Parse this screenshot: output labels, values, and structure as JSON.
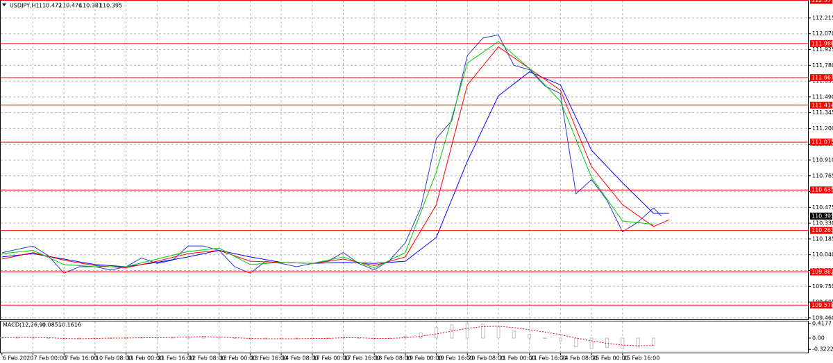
{
  "chart_data": [
    {
      "type": "line",
      "title": "USDJPY,H1",
      "ohlc": [
        110.472,
        110.476,
        110.381,
        110.395
      ],
      "xlim": [
        -1,
        416
      ],
      "xticks": [
        {
          "value": 0,
          "label": "6 Feb 2020"
        },
        {
          "value": 16,
          "label": "7 Feb 00:00"
        },
        {
          "value": 32,
          "label": "7 Feb 16:00"
        },
        {
          "value": 48,
          "label": "10 Feb 08:00"
        },
        {
          "value": 64,
          "label": "11 Feb 00:00"
        },
        {
          "value": 80,
          "label": "11 Feb 16:00"
        },
        {
          "value": 96,
          "label": "12 Feb 08:00"
        },
        {
          "value": 112,
          "label": "13 Feb 00:00"
        },
        {
          "value": 128,
          "label": "13 Feb 16:00"
        },
        {
          "value": 144,
          "label": "14 Feb 08:00"
        },
        {
          "value": 160,
          "label": "17 Feb 00:00"
        },
        {
          "value": 176,
          "label": "17 Feb 16:00"
        },
        {
          "value": 192,
          "label": "18 Feb 08:00"
        },
        {
          "value": 208,
          "label": "19 Feb 00:00"
        },
        {
          "value": 224,
          "label": "19 Feb 16:00"
        },
        {
          "value": 240,
          "label": "20 Feb 08:00"
        },
        {
          "value": 256,
          "label": "21 Feb 00:00"
        },
        {
          "value": 272,
          "label": "21 Feb 16:00"
        },
        {
          "value": 288,
          "label": "24 Feb 08:00"
        },
        {
          "value": 304,
          "label": "25 Feb 00:00"
        },
        {
          "value": 320,
          "label": "25 Feb 16:00"
        }
      ],
      "ylim": [
        109.44,
        112.38
      ],
      "yticks": [
        112.215,
        {
          "value": 112.07,
          "label": "112.070"
        },
        111.925,
        {
          "value": 111.78,
          "label": "111.780"
        },
        111.635,
        {
          "value": 111.49,
          "label": "111.490"
        },
        111.345,
        {
          "value": 111.2,
          "label": "111.200"
        },
        111.055,
        {
          "value": 110.91,
          "label": "110.910"
        },
        110.765,
        {
          "value": 110.62,
          "label": "110.620"
        },
        110.475,
        {
          "value": 110.33,
          "label": "110.330"
        },
        110.185,
        {
          "value": 110.04,
          "label": "110.040"
        },
        109.895,
        {
          "value": 109.75,
          "label": "109.750"
        },
        109.605,
        {
          "value": 109.46,
          "label": "109.460"
        }
      ],
      "grid": true,
      "levels": [
        112.377,
        {
          "value": 111.98,
          "label": "111.980"
        },
        111.667,
        111.414,
        111.075,
        110.635,
        110.263,
        109.882,
        109.578
      ],
      "level_color": "#ff0000",
      "last": 110.395,
      "series": [
        {
          "color": "#2a3bd6",
          "x": [
            0,
            8,
            16,
            24,
            32,
            40,
            48,
            56,
            64,
            72,
            80,
            88,
            96,
            104,
            112,
            120,
            128,
            136,
            144,
            152,
            160,
            168,
            176,
            184,
            192,
            200,
            208,
            216,
            224,
            232,
            240,
            248,
            256,
            264,
            272,
            280,
            288,
            296,
            304,
            312,
            320,
            328,
            336,
            340
          ],
          "values": [
            110.058,
            110.09,
            110.12,
            110.03,
            109.87,
            109.93,
            109.93,
            109.9,
            109.93,
            110.01,
            109.96,
            109.99,
            110.12,
            110.12,
            110.08,
            109.93,
            109.87,
            109.98,
            109.96,
            109.93,
            109.96,
            109.98,
            110.06,
            109.96,
            109.9,
            109.99,
            110.15,
            110.47,
            111.11,
            111.27,
            111.87,
            112.03,
            112.06,
            111.78,
            111.74,
            111.59,
            111.52,
            110.6,
            110.73,
            110.54,
            110.25,
            110.34,
            110.47,
            110.395
          ]
        },
        {
          "color": "#0000ff",
          "x": [
            0,
            16,
            32,
            48,
            64,
            80,
            96,
            112,
            128,
            144,
            160,
            176,
            192,
            208,
            224,
            240,
            256,
            272,
            288,
            304,
            320,
            336,
            344
          ],
          "values": [
            110.02,
            110.05,
            110.0,
            109.95,
            109.93,
            109.97,
            110.02,
            110.08,
            110.02,
            109.97,
            109.96,
            109.97,
            109.96,
            109.98,
            110.2,
            110.9,
            111.5,
            111.72,
            111.6,
            111.0,
            110.7,
            110.42,
            110.42
          ]
        },
        {
          "color": "#ff0000",
          "x": [
            0,
            16,
            32,
            48,
            64,
            80,
            96,
            112,
            128,
            144,
            160,
            176,
            192,
            208,
            224,
            240,
            256,
            272,
            288,
            304,
            320,
            336,
            344
          ],
          "values": [
            110.0,
            110.06,
            109.99,
            109.94,
            109.92,
            109.98,
            110.05,
            110.08,
            109.98,
            109.97,
            109.96,
            110.0,
            109.94,
            110.02,
            110.5,
            111.6,
            111.95,
            111.75,
            111.55,
            110.85,
            110.5,
            110.3,
            110.36
          ]
        },
        {
          "color": "#00cc00",
          "x": [
            0,
            16,
            32,
            48,
            64,
            80,
            96,
            112,
            128,
            144,
            160,
            176,
            192,
            208,
            224,
            240,
            256,
            272,
            288,
            304,
            320,
            336
          ],
          "values": [
            110.05,
            110.08,
            109.95,
            109.93,
            109.93,
            110.0,
            110.07,
            110.1,
            109.95,
            109.97,
            109.96,
            110.02,
            109.92,
            110.06,
            110.8,
            111.8,
            112.0,
            111.75,
            111.45,
            110.75,
            110.35,
            110.32
          ]
        }
      ]
    },
    {
      "type": "bar",
      "title": "MACD(12,26,9)",
      "readout": [
        -0.0851,
        -0.1616
      ],
      "ylim": [
        -0.437,
        0.497
      ],
      "yticks": [
        0.4177,
        {
          "value": 0,
          "label": "0.00"
        },
        -0.3222
      ],
      "x": [
        0,
        8,
        16,
        24,
        32,
        40,
        48,
        56,
        64,
        72,
        80,
        88,
        96,
        104,
        112,
        120,
        128,
        136,
        144,
        152,
        160,
        168,
        176,
        184,
        192,
        200,
        208,
        216,
        224,
        232,
        240,
        248,
        256,
        264,
        272,
        280,
        288,
        296,
        304,
        312,
        320,
        328,
        336
      ],
      "color": "#c0c0c0",
      "values": [
        0.02,
        0.03,
        0.03,
        0,
        -0.03,
        -0.02,
        -0.01,
        0,
        0.01,
        0.02,
        0.01,
        0.02,
        0.04,
        0.05,
        0.03,
        -0.01,
        -0.03,
        -0.02,
        -0.01,
        -0.02,
        -0.01,
        0,
        0.02,
        0,
        -0.02,
        0,
        0.05,
        0.15,
        0.3,
        0.38,
        0.42,
        0.4,
        0.32,
        0.2,
        0.1,
        0.0,
        -0.08,
        -0.25,
        -0.3,
        -0.27,
        -0.3,
        -0.25,
        -0.2
      ],
      "signal_color": "#ff0000",
      "signal": [
        0.01,
        0.02,
        0.02,
        0.01,
        -0.01,
        -0.02,
        -0.01,
        0,
        0,
        0.01,
        0.01,
        0.02,
        0.03,
        0.04,
        0.03,
        0.01,
        -0.01,
        -0.02,
        -0.02,
        -0.02,
        -0.01,
        -0.01,
        0.01,
        0.01,
        -0.01,
        -0.01,
        0.01,
        0.05,
        0.12,
        0.2,
        0.28,
        0.33,
        0.34,
        0.3,
        0.24,
        0.17,
        0.1,
        0.0,
        -0.08,
        -0.15,
        -0.2,
        -0.22,
        -0.21
      ]
    }
  ]
}
